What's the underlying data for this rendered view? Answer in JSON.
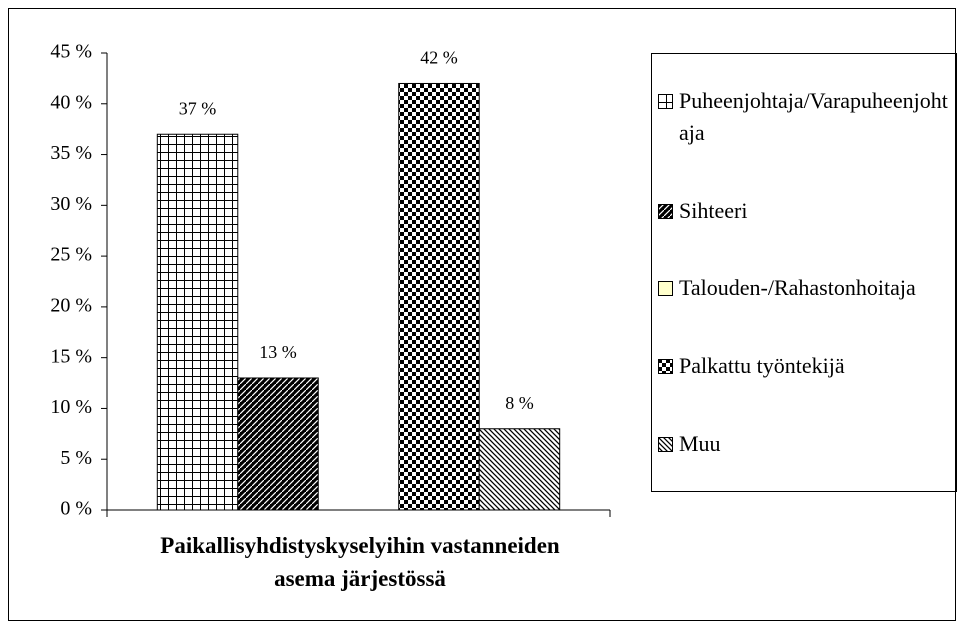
{
  "chart_data": {
    "type": "bar",
    "x_label": "Paikallisyhdistyskyselyihin vastanneiden asema järjestössä",
    "series": [
      {
        "name": "Puheenjohtaja/Varapuheenjohtaja",
        "color": "#000000",
        "pattern": "grid",
        "values": [
          37
        ],
        "value_labels": [
          "37 %"
        ]
      },
      {
        "name": "Sihteeri",
        "color": "#000000",
        "pattern": "diagonal-dark",
        "values": [
          13
        ],
        "value_labels": [
          "13 %"
        ]
      },
      {
        "name": "Talouden-/Rahastonhoitaja",
        "color": "#ffffcc",
        "pattern": "solid",
        "values": [
          0
        ],
        "value_labels": [
          null
        ]
      },
      {
        "name": "Palkattu työntekijä",
        "color": "#000000",
        "pattern": "checker",
        "values": [
          42
        ],
        "value_labels": [
          "42 %"
        ]
      },
      {
        "name": "Muu",
        "color": "#000000",
        "pattern": "diagonal",
        "values": [
          8
        ],
        "value_labels": [
          "8 %"
        ]
      }
    ],
    "ylim": [
      0,
      45
    ],
    "yticks": [
      {
        "value": 0,
        "label": "0 %"
      },
      {
        "value": 5,
        "label": "5 %"
      },
      {
        "value": 10,
        "label": "10 %"
      },
      {
        "value": 15,
        "label": "15 %"
      },
      {
        "value": 20,
        "label": "20 %"
      },
      {
        "value": 25,
        "label": "25 %"
      },
      {
        "value": 30,
        "label": "30 %"
      },
      {
        "value": 35,
        "label": "35 %"
      },
      {
        "value": 40,
        "label": "40 %"
      },
      {
        "value": 45,
        "label": "45 %"
      }
    ],
    "legend": "right"
  }
}
